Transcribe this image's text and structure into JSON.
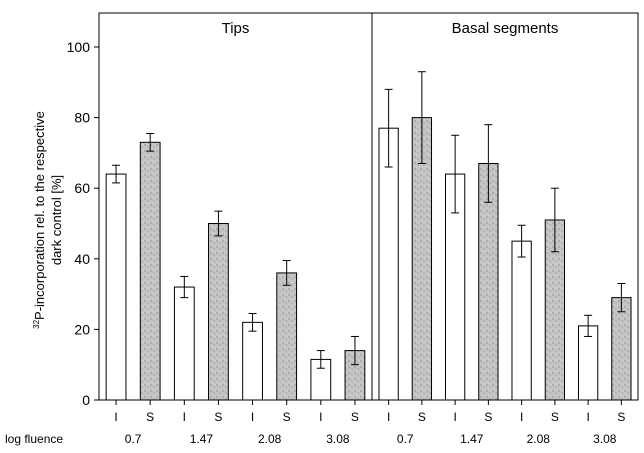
{
  "chart_data": {
    "type": "bar",
    "ylabel_superscript": "32",
    "ylabel_line1": "P-incorporation rel. to the respective",
    "ylabel_line2": "dark control [%]",
    "ylim": [
      0,
      100
    ],
    "yticks": [
      0,
      20,
      40,
      60,
      80,
      100
    ],
    "grid": false,
    "log_fluence_label": "log fluence",
    "panels": [
      {
        "title": "Tips",
        "groups": [
          {
            "log_fluence": "0.7",
            "bars": [
              {
                "label": "I",
                "value": 64,
                "err": 2.5
              },
              {
                "label": "S",
                "value": 73,
                "err": 2.5
              }
            ]
          },
          {
            "log_fluence": "1.47",
            "bars": [
              {
                "label": "I",
                "value": 32,
                "err": 3
              },
              {
                "label": "S",
                "value": 50,
                "err": 3.5
              }
            ]
          },
          {
            "log_fluence": "2.08",
            "bars": [
              {
                "label": "I",
                "value": 22,
                "err": 2.5
              },
              {
                "label": "S",
                "value": 36,
                "err": 3.5
              }
            ]
          },
          {
            "log_fluence": "3.08",
            "bars": [
              {
                "label": "I",
                "value": 11.5,
                "err": 2.5
              },
              {
                "label": "S",
                "value": 14,
                "err": 4
              }
            ]
          }
        ]
      },
      {
        "title": "Basal segments",
        "groups": [
          {
            "log_fluence": "0.7",
            "bars": [
              {
                "label": "I",
                "value": 77,
                "err": 11
              },
              {
                "label": "S",
                "value": 80,
                "err": 13
              }
            ]
          },
          {
            "log_fluence": "1.47",
            "bars": [
              {
                "label": "I",
                "value": 64,
                "err": 11
              },
              {
                "label": "S",
                "value": 67,
                "err": 11
              }
            ]
          },
          {
            "log_fluence": "2.08",
            "bars": [
              {
                "label": "I",
                "value": 45,
                "err": 4.5
              },
              {
                "label": "S",
                "value": 51,
                "err": 9
              }
            ]
          },
          {
            "log_fluence": "3.08",
            "bars": [
              {
                "label": "I",
                "value": 21,
                "err": 3
              },
              {
                "label": "S",
                "value": 29,
                "err": 4
              }
            ]
          }
        ]
      }
    ],
    "colors": {
      "I": "#ffffff",
      "S": "#b8b8b8"
    }
  }
}
